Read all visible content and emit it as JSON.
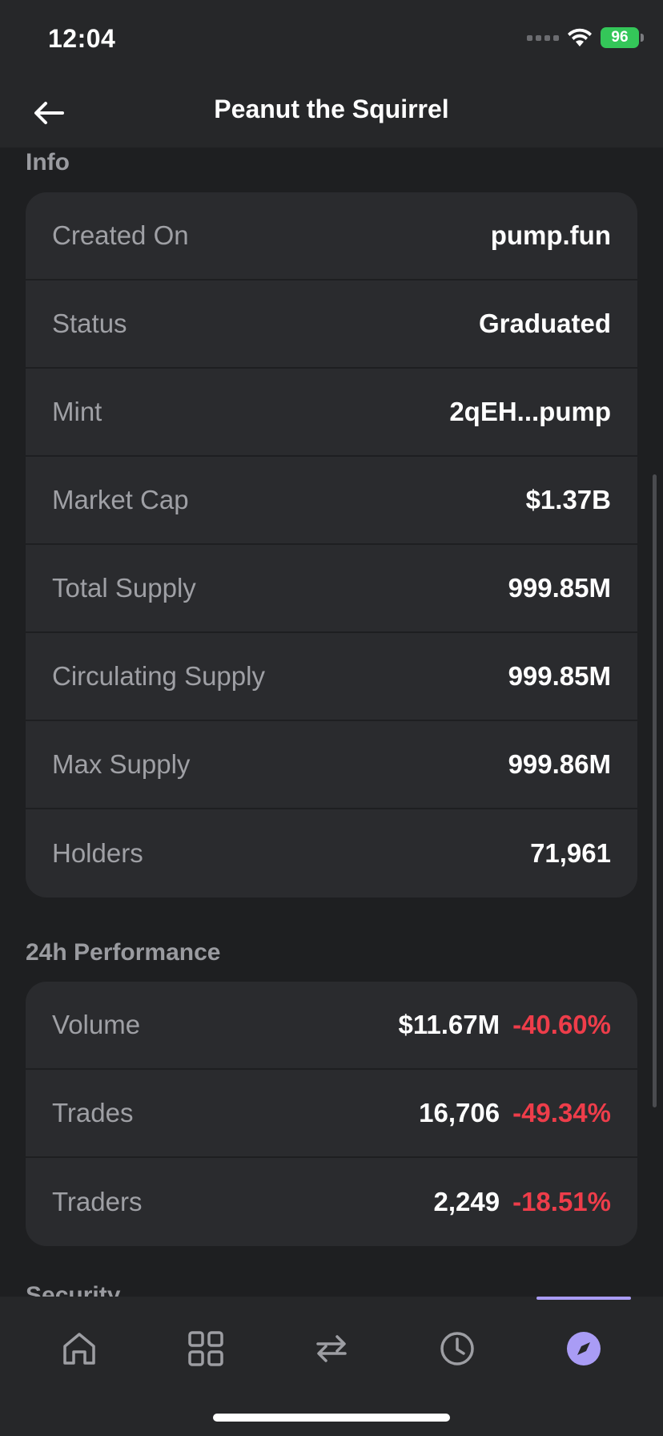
{
  "status_bar": {
    "time": "12:04",
    "battery": "96"
  },
  "header": {
    "title": "Peanut the Squirrel"
  },
  "info": {
    "title": "Info",
    "rows": [
      {
        "label": "Created On",
        "value": "pump.fun"
      },
      {
        "label": "Status",
        "value": "Graduated"
      },
      {
        "label": "Mint",
        "value": "2qEH...pump"
      },
      {
        "label": "Market Cap",
        "value": "$1.37B"
      },
      {
        "label": "Total Supply",
        "value": "999.85M"
      },
      {
        "label": "Circulating Supply",
        "value": "999.85M"
      },
      {
        "label": "Max Supply",
        "value": "999.86M"
      },
      {
        "label": "Holders",
        "value": "71,961"
      }
    ]
  },
  "performance": {
    "title": "24h Performance",
    "rows": [
      {
        "label": "Volume",
        "value": "$11.67M",
        "change": "-40.60%"
      },
      {
        "label": "Trades",
        "value": "16,706",
        "change": "-49.34%"
      },
      {
        "label": "Traders",
        "value": "2,249",
        "change": "-18.51%"
      }
    ]
  },
  "next_section": {
    "title": "Security"
  },
  "bottom_nav": {
    "items": [
      "home-icon",
      "grid-icon",
      "swap-icon",
      "clock-icon",
      "compass-icon"
    ],
    "active_index": 4,
    "accent_color": "#a99cf5"
  },
  "colors": {
    "negative": "#ee3d4a",
    "battery": "#34c759"
  }
}
